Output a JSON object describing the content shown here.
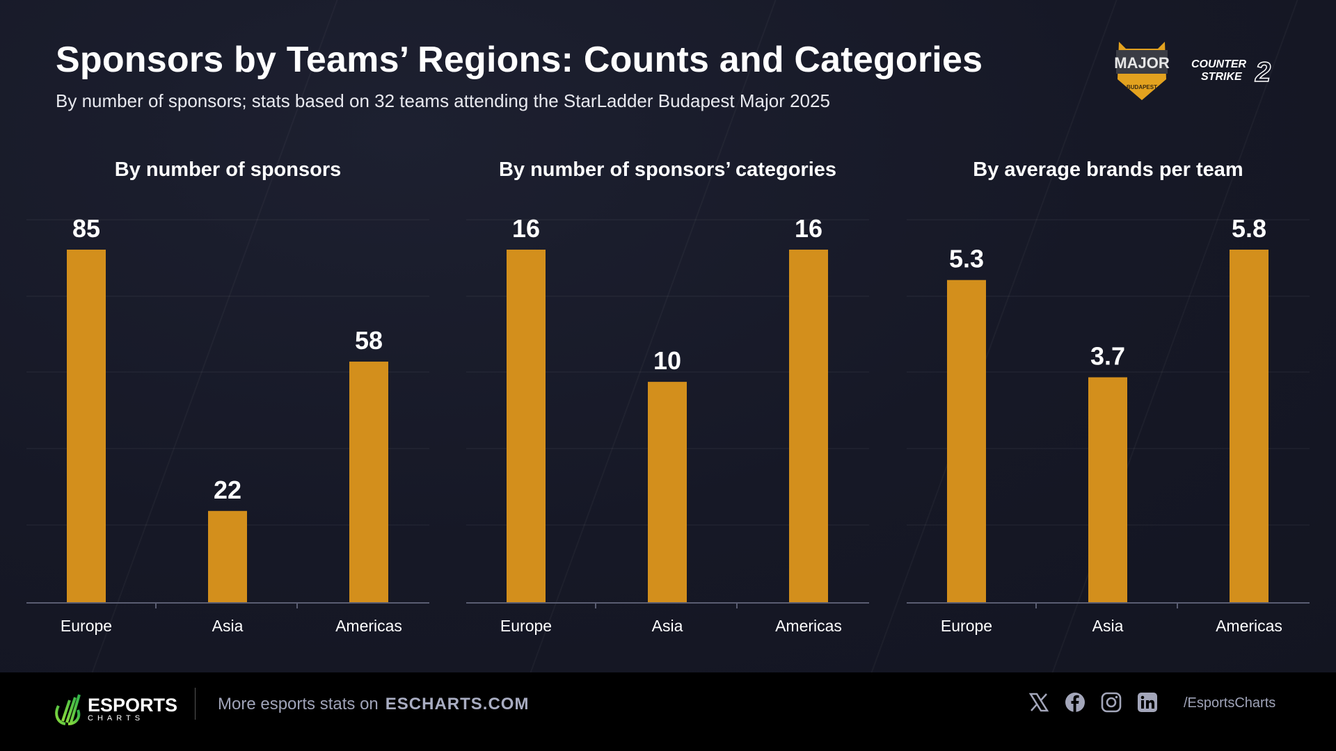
{
  "header": {
    "title": "Sponsors by Teams’ Regions: Counts and Categories",
    "subtitle": "By number of sponsors; stats based on 32 teams attending the StarLadder Budapest Major 2025",
    "logos": [
      {
        "name": "StarLadder Major Budapest 2025",
        "text": "MAJOR"
      },
      {
        "name": "Counter-Strike 2",
        "text": "COUNTER STRIKE 2"
      }
    ]
  },
  "colors": {
    "bar": "#D38F1C",
    "background": "#161826",
    "footer": "#000000"
  },
  "chart_data": [
    {
      "type": "bar",
      "title": "By number of sponsors",
      "categories": [
        "Europe",
        "Asia",
        "Americas"
      ],
      "values": [
        85,
        22,
        58
      ],
      "ylim": [
        0,
        85
      ],
      "grid": true
    },
    {
      "type": "bar",
      "title": "By number of sponsors’ categories",
      "categories": [
        "Europe",
        "Asia",
        "Americas"
      ],
      "values": [
        16,
        10,
        16
      ],
      "ylim": [
        0,
        16
      ],
      "grid": true
    },
    {
      "type": "bar",
      "title": "By average brands per team",
      "categories": [
        "Europe",
        "Asia",
        "Americas"
      ],
      "values": [
        5.3,
        3.7,
        5.8
      ],
      "ylim": [
        0,
        5.8
      ],
      "grid": true
    }
  ],
  "footer": {
    "brand_top": "ESPORTS",
    "brand_bottom": "CHARTS",
    "more_text": "More esports stats on",
    "site": "ESCHARTS.COM",
    "social_icons": [
      "x-icon",
      "facebook-icon",
      "instagram-icon",
      "linkedin-icon"
    ],
    "handle": "/EsportsCharts"
  }
}
